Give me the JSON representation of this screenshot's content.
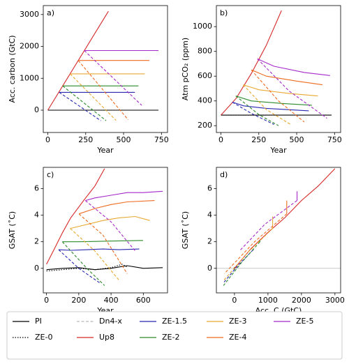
{
  "chart_data": [
    {
      "type": "line",
      "label": "a)",
      "xlabel": "Year",
      "ylabel": "Acc. carbon (GtC)",
      "xlim": [
        -30,
        790
      ],
      "ylim": [
        -700,
        3280
      ],
      "xticks": [
        0,
        250,
        500,
        750
      ],
      "yticks": [
        0,
        1000,
        2000,
        3000
      ],
      "series": [
        {
          "color": "#000000",
          "dash": "solid",
          "x": [
            0,
            730
          ],
          "values": [
            0,
            0
          ]
        },
        {
          "color": "#000000",
          "dash": "dotted",
          "x": [
            0,
            300
          ],
          "values": [
            0,
            0
          ]
        },
        {
          "color": "#d62728",
          "dash": "solid",
          "x": [
            0,
            400
          ],
          "values": [
            0,
            3100
          ]
        },
        {
          "color": "#2626b0",
          "dash": "solid",
          "x": [
            75,
            575
          ],
          "values": [
            560,
            560
          ]
        },
        {
          "color": "#2626b0",
          "dash": "dashed",
          "x": [
            75,
            350
          ],
          "values": [
            560,
            -330
          ]
        },
        {
          "color": "#2a8a2a",
          "dash": "solid",
          "x": [
            98,
            598
          ],
          "values": [
            760,
            760
          ]
        },
        {
          "color": "#2a8a2a",
          "dash": "dashed",
          "x": [
            98,
            385
          ],
          "values": [
            760,
            -330
          ]
        },
        {
          "color": "#e8a830",
          "dash": "solid",
          "x": [
            147,
            640
          ],
          "values": [
            1140,
            1140
          ]
        },
        {
          "color": "#e8a830",
          "dash": "dashed",
          "x": [
            147,
            450
          ],
          "values": [
            1140,
            -320
          ]
        },
        {
          "color": "#ee6a1e",
          "dash": "solid",
          "x": [
            201,
            670
          ],
          "values": [
            1560,
            1560
          ]
        },
        {
          "color": "#ee6a1e",
          "dash": "dashed",
          "x": [
            201,
            530
          ],
          "values": [
            1560,
            -300
          ]
        },
        {
          "color": "#a528c8",
          "dash": "solid",
          "x": [
            241,
            730
          ],
          "values": [
            1870,
            1870
          ]
        },
        {
          "color": "#a528c8",
          "dash": "dashed",
          "x": [
            241,
            620
          ],
          "values": [
            1870,
            150
          ]
        }
      ]
    },
    {
      "type": "line",
      "label": "b)",
      "xlabel": "Year",
      "ylabel": "Atm pCO₂ (ppm)",
      "xlim": [
        -30,
        790
      ],
      "ylim": [
        145,
        1170
      ],
      "xticks": [
        0,
        250,
        500,
        750
      ],
      "yticks": [
        200,
        400,
        600,
        800,
        1000
      ],
      "series": [
        {
          "color": "#000000",
          "dash": "solid",
          "x": [
            0,
            730
          ],
          "values": [
            285,
            285
          ]
        },
        {
          "color": "#000000",
          "dash": "dotted",
          "x": [
            0,
            300
          ],
          "values": [
            285,
            285
          ]
        },
        {
          "color": "#d62728",
          "dash": "solid",
          "x": [
            0,
            100,
            200,
            300,
            400
          ],
          "values": [
            285,
            420,
            620,
            850,
            1130
          ]
        },
        {
          "color": "#2626b0",
          "dash": "solid",
          "x": [
            75,
            150,
            300,
            580
          ],
          "values": [
            390,
            360,
            340,
            320
          ]
        },
        {
          "color": "#2626b0",
          "dash": "dashed",
          "x": [
            75,
            200,
            350
          ],
          "values": [
            390,
            300,
            210
          ]
        },
        {
          "color": "#2a8a2a",
          "dash": "solid",
          "x": [
            98,
            200,
            400,
            600
          ],
          "values": [
            440,
            400,
            380,
            365
          ]
        },
        {
          "color": "#2a8a2a",
          "dash": "dashed",
          "x": [
            98,
            250,
            380
          ],
          "values": [
            440,
            290,
            200
          ]
        },
        {
          "color": "#e8a830",
          "dash": "solid",
          "x": [
            147,
            250,
            450,
            640
          ],
          "values": [
            530,
            490,
            460,
            440
          ]
        },
        {
          "color": "#e8a830",
          "dash": "dashed",
          "x": [
            147,
            300,
            460
          ],
          "values": [
            530,
            330,
            210
          ]
        },
        {
          "color": "#ee6a1e",
          "dash": "solid",
          "x": [
            201,
            300,
            500,
            670
          ],
          "values": [
            650,
            600,
            560,
            530
          ]
        },
        {
          "color": "#ee6a1e",
          "dash": "dashed",
          "x": [
            201,
            380,
            550
          ],
          "values": [
            650,
            400,
            230
          ]
        },
        {
          "color": "#a528c8",
          "dash": "solid",
          "x": [
            241,
            350,
            550,
            720
          ],
          "values": [
            740,
            680,
            630,
            605
          ]
        },
        {
          "color": "#a528c8",
          "dash": "dashed",
          "x": [
            241,
            450,
            700
          ],
          "values": [
            740,
            480,
            260
          ]
        }
      ]
    },
    {
      "type": "line",
      "label": "c)",
      "xlabel": "Year",
      "ylabel": "GSAT (˚C)",
      "xlim": [
        -20,
        750
      ],
      "ylim": [
        -1.85,
        7.6
      ],
      "xticks": [
        0,
        200,
        400,
        600
      ],
      "yticks": [
        0,
        2,
        4,
        6
      ],
      "series": [
        {
          "color": "#000000",
          "dash": "solid",
          "x": [
            0,
            100,
            200,
            300,
            400,
            500,
            600,
            720
          ],
          "values": [
            -0.1,
            0.0,
            0.05,
            -0.1,
            0.0,
            0.2,
            0.0,
            0.05
          ]
        },
        {
          "color": "#000000",
          "dash": "dotted",
          "x": [
            0,
            100,
            200,
            300,
            400,
            470,
            500
          ],
          "values": [
            -0.2,
            -0.1,
            0.0,
            -0.1,
            0.05,
            0.3,
            0.1
          ]
        },
        {
          "color": "#d62728",
          "dash": "solid",
          "x": [
            0,
            50,
            100,
            150,
            230,
            300,
            360
          ],
          "values": [
            0.3,
            1.5,
            2.7,
            3.8,
            5.1,
            6.2,
            7.5
          ]
        },
        {
          "color": "#2626b0",
          "dash": "solid",
          "x": [
            75,
            150,
            250,
            350,
            450,
            575
          ],
          "values": [
            1.4,
            1.35,
            1.4,
            1.45,
            1.4,
            1.45
          ]
        },
        {
          "color": "#2626b0",
          "dash": "dashed",
          "x": [
            75,
            200,
            330
          ],
          "values": [
            1.4,
            0.0,
            -1.1
          ]
        },
        {
          "color": "#2a8a2a",
          "dash": "solid",
          "x": [
            98,
            200,
            400,
            598
          ],
          "values": [
            2.0,
            2.0,
            2.05,
            2.1
          ]
        },
        {
          "color": "#2a8a2a",
          "dash": "dashed",
          "x": [
            98,
            250,
            360
          ],
          "values": [
            2.0,
            0.0,
            -1.3
          ]
        },
        {
          "color": "#e8a830",
          "dash": "solid",
          "x": [
            147,
            250,
            350,
            450,
            550,
            640
          ],
          "values": [
            3.0,
            3.3,
            3.6,
            3.8,
            3.9,
            3.6
          ]
        },
        {
          "color": "#e8a830",
          "dash": "dashed",
          "x": [
            147,
            300,
            450
          ],
          "values": [
            3.0,
            1.3,
            -0.9
          ]
        },
        {
          "color": "#ee6a1e",
          "dash": "solid",
          "x": [
            201,
            300,
            400,
            500,
            670
          ],
          "values": [
            4.1,
            4.5,
            4.8,
            5.0,
            5.1
          ]
        },
        {
          "color": "#ee6a1e",
          "dash": "dashed",
          "x": [
            201,
            350,
            500
          ],
          "values": [
            4.1,
            2.5,
            -0.4
          ]
        },
        {
          "color": "#a528c8",
          "dash": "solid",
          "x": [
            241,
            300,
            400,
            500,
            600,
            720
          ],
          "values": [
            5.1,
            5.3,
            5.5,
            5.7,
            5.7,
            5.8
          ]
        },
        {
          "color": "#a528c8",
          "dash": "dashed",
          "x": [
            241,
            400,
            550
          ],
          "values": [
            5.1,
            3.5,
            1.3
          ]
        }
      ]
    },
    {
      "type": "line",
      "label": "d)",
      "xlabel": "Acc. C (GtC)",
      "ylabel": "GSAT (˚C)",
      "xlim": [
        -540,
        3170
      ],
      "ylim": [
        -1.85,
        7.6
      ],
      "xticks": [
        0,
        1000,
        2000,
        3000
      ],
      "yticks": [
        0,
        2,
        4,
        6
      ],
      "hline": 0,
      "series": [
        {
          "color": "#000000",
          "dash": "solid",
          "x": [
            0,
            0
          ],
          "values": [
            -0.1,
            0.1
          ]
        },
        {
          "color": "#d62728",
          "dash": "solid",
          "x": [
            0,
            500,
            1000,
            1500,
            2000,
            2500,
            3000
          ],
          "values": [
            0,
            1.5,
            2.7,
            3.8,
            5.1,
            6.2,
            7.5
          ]
        },
        {
          "color": "#2626b0",
          "dash": "solid",
          "x": [
            560,
            560
          ],
          "values": [
            1.35,
            1.45
          ]
        },
        {
          "color": "#2626b0",
          "dash": "dashed",
          "x": [
            560,
            100,
            -330
          ],
          "values": [
            1.4,
            0.2,
            -1.1
          ]
        },
        {
          "color": "#2a8a2a",
          "dash": "solid",
          "x": [
            760,
            760
          ],
          "values": [
            2.0,
            2.1
          ]
        },
        {
          "color": "#2a8a2a",
          "dash": "dashed",
          "x": [
            760,
            200,
            -330
          ],
          "values": [
            2.0,
            0.4,
            -1.3
          ]
        },
        {
          "color": "#e8a830",
          "dash": "solid",
          "x": [
            1140,
            1140
          ],
          "values": [
            3.0,
            3.9
          ]
        },
        {
          "color": "#e8a830",
          "dash": "dashed",
          "x": [
            1140,
            400,
            -320
          ],
          "values": [
            3.0,
            1.2,
            -0.9
          ]
        },
        {
          "color": "#ee6a1e",
          "dash": "solid",
          "x": [
            1560,
            1560
          ],
          "values": [
            4.1,
            5.1
          ]
        },
        {
          "color": "#ee6a1e",
          "dash": "dashed",
          "x": [
            1560,
            600,
            -300
          ],
          "values": [
            4.1,
            2.0,
            -0.4
          ]
        },
        {
          "color": "#a528c8",
          "dash": "solid",
          "x": [
            1870,
            1870
          ],
          "values": [
            5.1,
            5.8
          ]
        },
        {
          "color": "#a528c8",
          "dash": "dashed",
          "x": [
            1870,
            900,
            150
          ],
          "values": [
            5.1,
            3.3,
            1.3
          ]
        }
      ]
    }
  ],
  "legend": [
    {
      "name": "PI",
      "color": "#000000",
      "dash": "solid"
    },
    {
      "name": "ZE-0",
      "color": "#000000",
      "dash": "dotted"
    },
    {
      "name": "Dn4-x",
      "color": "#b8b8b8",
      "dash": "dashed"
    },
    {
      "name": "Up8",
      "color": "#d62728",
      "dash": "solid"
    },
    {
      "name": "ZE-1.5",
      "color": "#2626b0",
      "dash": "solid"
    },
    {
      "name": "ZE-2",
      "color": "#2a8a2a",
      "dash": "solid"
    },
    {
      "name": "ZE-3",
      "color": "#e8a830",
      "dash": "solid"
    },
    {
      "name": "ZE-4",
      "color": "#ee6a1e",
      "dash": "solid"
    },
    {
      "name": "ZE-5",
      "color": "#a528c8",
      "dash": "solid"
    }
  ]
}
